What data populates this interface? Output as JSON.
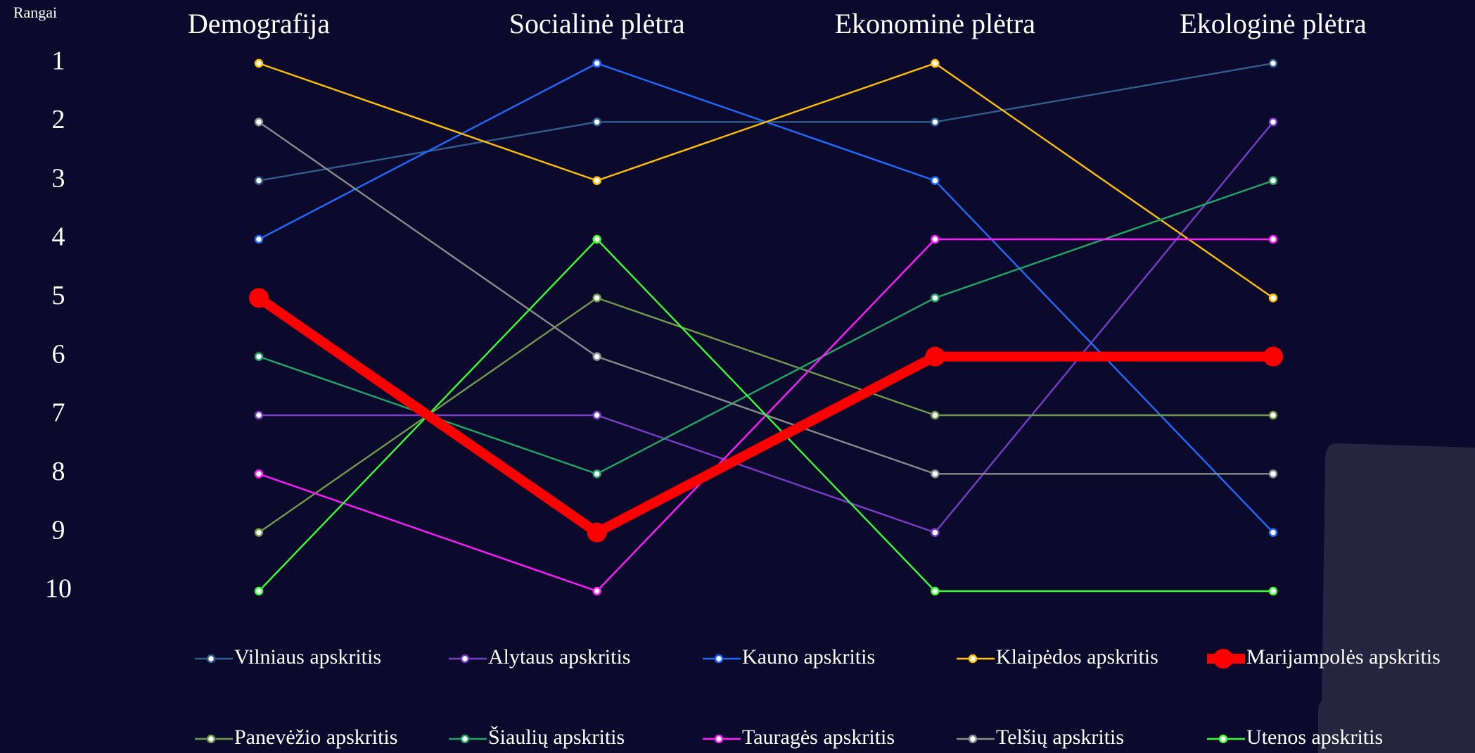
{
  "chart_data": {
    "type": "bump",
    "ylabel": "Rangai",
    "categories": [
      "Demografija",
      "Socialinė plėtra",
      "Ekonominė plėtra",
      "Ekologinė plėtra"
    ],
    "ylim": [
      10,
      1
    ],
    "yticks": [
      1,
      2,
      3,
      4,
      5,
      6,
      7,
      8,
      9,
      10
    ],
    "grid": false,
    "series": [
      {
        "name": "Vilniaus apskritis",
        "color": "#2e5d8e",
        "values": [
          3,
          2,
          2,
          1
        ]
      },
      {
        "name": "Alytaus apskritis",
        "color": "#7a3cc8",
        "values": [
          7,
          7,
          9,
          2
        ]
      },
      {
        "name": "Kauno apskritis",
        "color": "#1f6bff",
        "values": [
          4,
          1,
          3,
          9
        ]
      },
      {
        "name": "Klaipėdos apskritis",
        "color": "#ffc000",
        "values": [
          1,
          3,
          1,
          5
        ]
      },
      {
        "name": "Marijampolės apskritis",
        "color": "#ff0000",
        "values": [
          5,
          9,
          6,
          6
        ],
        "highlight": true
      },
      {
        "name": "Panevėžio apskritis",
        "color": "#6f9a4c",
        "values": [
          9,
          5,
          7,
          7
        ]
      },
      {
        "name": "Šiaulių apskritis",
        "color": "#1ea765",
        "values": [
          6,
          8,
          5,
          3
        ]
      },
      {
        "name": "Tauragės apskritis",
        "color": "#ff1aff",
        "values": [
          8,
          10,
          4,
          4
        ]
      },
      {
        "name": "Telšių apskritis",
        "color": "#8a8a8a",
        "values": [
          2,
          6,
          8,
          8
        ]
      },
      {
        "name": "Utenos apskritis",
        "color": "#33ff33",
        "values": [
          10,
          4,
          10,
          10
        ]
      }
    ]
  }
}
